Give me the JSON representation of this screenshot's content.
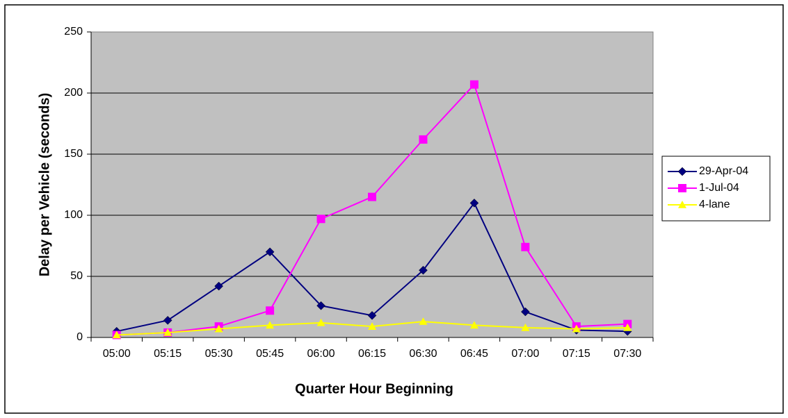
{
  "chart_data": {
    "type": "line",
    "x_label": "Quarter Hour Beginning",
    "y_label": "Delay per Vehicle (seconds)",
    "categories": [
      "05:00",
      "05:15",
      "05:30",
      "05:45",
      "06:00",
      "06:15",
      "06:30",
      "06:45",
      "07:00",
      "07:15",
      "07:30"
    ],
    "series": [
      {
        "name": "29-Apr-04",
        "color": "#000080",
        "marker": "diamond",
        "values": [
          5,
          14,
          42,
          70,
          26,
          18,
          55,
          110,
          21,
          6,
          5
        ]
      },
      {
        "name": "1-Jul-04",
        "color": "#ff00ff",
        "marker": "square",
        "values": [
          2,
          4,
          9,
          22,
          97,
          115,
          162,
          207,
          74,
          9,
          11
        ]
      },
      {
        "name": "4-lane",
        "color": "#ffff00",
        "marker": "triangle",
        "values": [
          2,
          4,
          7,
          10,
          12,
          9,
          13,
          10,
          8,
          7,
          8
        ]
      }
    ],
    "ylim": [
      0,
      250
    ],
    "yticks": [
      0,
      50,
      100,
      150,
      200,
      250
    ],
    "grid": true,
    "legend": "right",
    "plot_background": "#c0c0c0"
  }
}
